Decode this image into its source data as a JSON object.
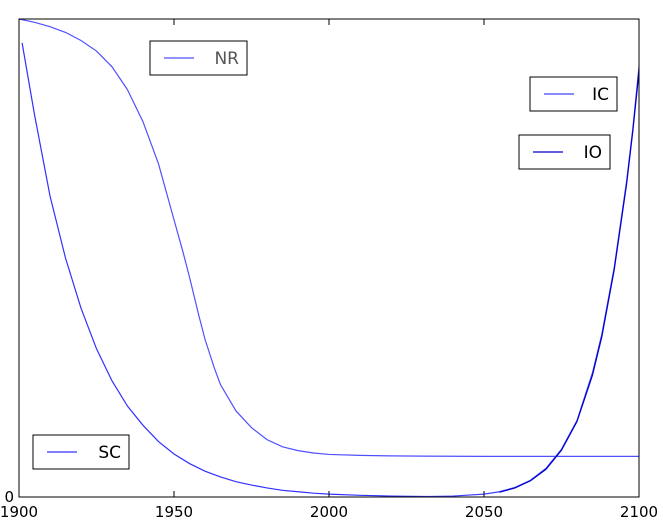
{
  "chart_data": {
    "type": "line",
    "title": "",
    "xlabel": "",
    "ylabel": "",
    "xlim": [
      1900,
      2100
    ],
    "ylim": [
      0,
      1
    ],
    "grid": false,
    "x_ticks": [
      1900,
      1950,
      2000,
      2050,
      2100
    ],
    "y_ticks": [
      0
    ],
    "series": [
      {
        "name": "NR",
        "color": "#5050ff",
        "x": [
          1900,
          1905,
          1910,
          1915,
          1920,
          1925,
          1930,
          1935,
          1940,
          1945,
          1950,
          1953,
          1955,
          1958,
          1960,
          1963,
          1965,
          1970,
          1975,
          1980,
          1985,
          1990,
          1995,
          2000,
          2010,
          2020,
          2030,
          2050,
          2080,
          2100
        ],
        "y": [
          1.0,
          0.993,
          0.984,
          0.972,
          0.955,
          0.933,
          0.9,
          0.852,
          0.785,
          0.697,
          0.58,
          0.51,
          0.46,
          0.38,
          0.33,
          0.27,
          0.235,
          0.18,
          0.145,
          0.12,
          0.105,
          0.097,
          0.092,
          0.089,
          0.087,
          0.086,
          0.0855,
          0.085,
          0.085,
          0.085
        ]
      },
      {
        "name": "SC",
        "color": "#3030ff",
        "x": [
          1901,
          1905,
          1910,
          1915,
          1920,
          1925,
          1930,
          1935,
          1940,
          1945,
          1950,
          1955,
          1960,
          1965,
          1970,
          1975,
          1980,
          1985,
          1990,
          1995,
          2000,
          2010,
          2020,
          2030,
          2040
        ],
        "y": [
          0.95,
          0.8,
          0.63,
          0.5,
          0.395,
          0.31,
          0.243,
          0.19,
          0.15,
          0.116,
          0.09,
          0.07,
          0.054,
          0.042,
          0.032,
          0.025,
          0.019,
          0.014,
          0.011,
          0.008,
          0.006,
          0.0035,
          0.002,
          0.0012,
          0.0008
        ]
      },
      {
        "name": "IC",
        "color": "#4040ff",
        "x": [
          2030,
          2040,
          2050,
          2055,
          2060,
          2065,
          2070,
          2075,
          2080,
          2085,
          2088,
          2090,
          2092,
          2094,
          2096,
          2098,
          2100
        ],
        "y": [
          0.0005,
          0.002,
          0.006,
          0.011,
          0.02,
          0.035,
          0.06,
          0.1,
          0.16,
          0.26,
          0.34,
          0.41,
          0.48,
          0.57,
          0.66,
          0.77,
          0.9
        ]
      },
      {
        "name": "IO",
        "color": "#0000cc",
        "x": [
          2055,
          2060,
          2065,
          2070,
          2075,
          2080,
          2085,
          2088,
          2090,
          2092,
          2094,
          2096,
          2098,
          2100
        ],
        "y": [
          0.01,
          0.019,
          0.034,
          0.058,
          0.098,
          0.158,
          0.255,
          0.335,
          0.405,
          0.475,
          0.565,
          0.655,
          0.765,
          0.89
        ]
      }
    ],
    "legends": [
      {
        "label": "NR",
        "series": "NR",
        "placement": "top-center-left"
      },
      {
        "label": "IC",
        "series": "IC",
        "placement": "upper-right"
      },
      {
        "label": "IO",
        "series": "IO",
        "placement": "right"
      },
      {
        "label": "SC",
        "series": "SC",
        "placement": "lower-left"
      }
    ]
  }
}
